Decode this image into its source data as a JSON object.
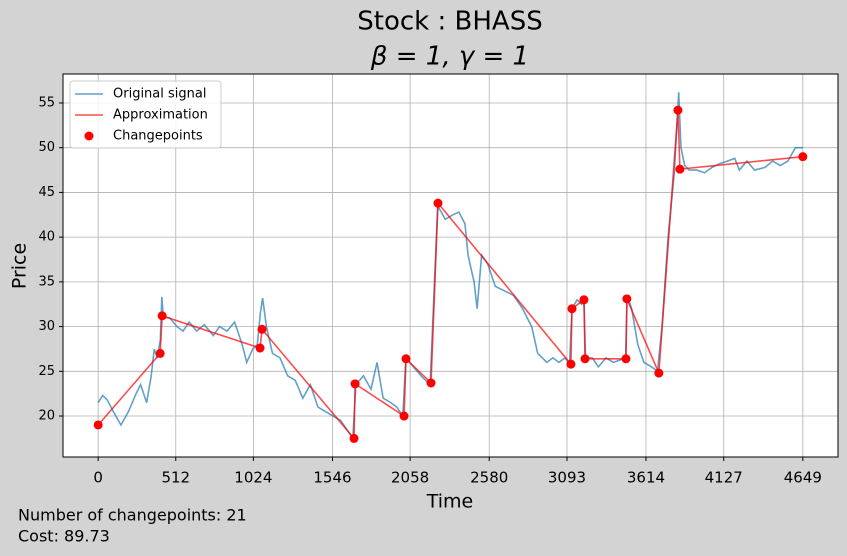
{
  "chart_data": {
    "type": "line",
    "title": "Stock : BHASS",
    "subtitle": "β = 1, γ = 1",
    "x_label": "Time",
    "y_label": "Price",
    "xlim": [
      -232,
      4881
    ],
    "ylim": [
      15.42,
      58.24
    ],
    "xticks": [
      0,
      512,
      1024,
      1546,
      2058,
      2580,
      3093,
      3614,
      4127,
      4649
    ],
    "yticks": [
      20,
      25,
      30,
      35,
      40,
      45,
      50,
      55
    ],
    "grid": true,
    "legend": "upper left",
    "series": [
      {
        "name": "Original signal",
        "type": "line",
        "color": "#1f77b4",
        "x": [
          0,
          30,
          60,
          100,
          150,
          200,
          250,
          280,
          320,
          350,
          370,
          390,
          410,
          420,
          430,
          470,
          520,
          560,
          600,
          650,
          700,
          760,
          800,
          850,
          900,
          950,
          980,
          1020,
          1050,
          1070,
          1085,
          1110,
          1150,
          1200,
          1250,
          1300,
          1350,
          1400,
          1450,
          1500,
          1550,
          1600,
          1640,
          1680,
          1700,
          1750,
          1800,
          1840,
          1880,
          1930,
          1970,
          2010,
          2030,
          2080,
          2130,
          2190,
          2240,
          2290,
          2340,
          2380,
          2420,
          2440,
          2480,
          2500,
          2530,
          2570,
          2620,
          2680,
          2740,
          2800,
          2860,
          2900,
          2960,
          3000,
          3040,
          3080,
          3110,
          3126,
          3160,
          3190,
          3205,
          3215,
          3260,
          3300,
          3350,
          3400,
          3480,
          3490,
          3520,
          3560,
          3600,
          3650,
          3690,
          3720,
          3760,
          3800,
          3820,
          3830,
          3845,
          3870,
          3900,
          3950,
          4000,
          4050,
          4100,
          4150,
          4200,
          4230,
          4280,
          4330,
          4400,
          4450,
          4500,
          4550,
          4600,
          4650
        ],
        "values": [
          21.5,
          22.3,
          21.8,
          20.5,
          19.0,
          20.5,
          22.5,
          23.5,
          21.5,
          24.5,
          27.5,
          26.5,
          28.5,
          33.3,
          31.0,
          31.0,
          30.0,
          29.5,
          30.5,
          29.5,
          30.2,
          29.0,
          30.0,
          29.5,
          30.5,
          28.0,
          26.0,
          27.5,
          28.0,
          31.5,
          33.2,
          30.0,
          27.0,
          26.5,
          24.5,
          24.0,
          22.0,
          23.5,
          21.0,
          20.5,
          20.0,
          19.5,
          18.5,
          17.5,
          23.5,
          24.5,
          23.0,
          26.0,
          22.0,
          21.5,
          21.0,
          20.0,
          26.5,
          25.5,
          24.5,
          23.5,
          43.5,
          42.0,
          42.5,
          42.8,
          41.5,
          38.0,
          35.0,
          32.0,
          38.0,
          37.0,
          34.5,
          34.0,
          33.5,
          32.0,
          30.0,
          27.0,
          26.0,
          26.5,
          26.0,
          26.5,
          25.8,
          32.0,
          33.0,
          32.5,
          33.0,
          26.5,
          26.5,
          25.5,
          26.5,
          26.0,
          26.5,
          33.5,
          32.0,
          28.0,
          26.0,
          25.5,
          25.0,
          30.0,
          40.0,
          47.0,
          53.0,
          56.2,
          50.0,
          48.0,
          47.5,
          47.5,
          47.2,
          47.8,
          48.2,
          48.5,
          48.8,
          47.5,
          48.5,
          47.5,
          47.8,
          48.5,
          48.0,
          48.5,
          50.0,
          50.0
        ]
      },
      {
        "name": "Approximation",
        "type": "line",
        "color": "#ff0000",
        "x": [
          0,
          409,
          422,
          1068,
          1081,
          1688,
          1695,
          2018,
          2031,
          2196,
          2242,
          3119,
          3126,
          3205,
          3212,
          3482,
          3488,
          3699,
          3825,
          3838,
          4649
        ],
        "values": [
          19.0,
          27.0,
          31.2,
          27.6,
          29.7,
          17.5,
          23.6,
          20.0,
          26.4,
          23.7,
          43.8,
          25.8,
          32.0,
          33.0,
          26.4,
          26.4,
          33.1,
          24.8,
          54.2,
          47.6,
          49.0
        ]
      },
      {
        "name": "Changepoints",
        "type": "scatter",
        "color": "#ff0000",
        "x": [
          0,
          409,
          422,
          1068,
          1081,
          1688,
          1695,
          2018,
          2031,
          2196,
          2242,
          3119,
          3126,
          3205,
          3212,
          3482,
          3488,
          3699,
          3825,
          3838,
          4649
        ],
        "values": [
          19.0,
          27.0,
          31.2,
          27.6,
          29.7,
          17.5,
          23.6,
          20.0,
          26.4,
          23.7,
          43.8,
          25.8,
          32.0,
          33.0,
          26.4,
          26.4,
          33.1,
          24.8,
          54.2,
          47.6,
          49.0
        ]
      }
    ],
    "annotations": [
      "Number of changepoints: 21",
      "Cost: 89.73"
    ]
  }
}
